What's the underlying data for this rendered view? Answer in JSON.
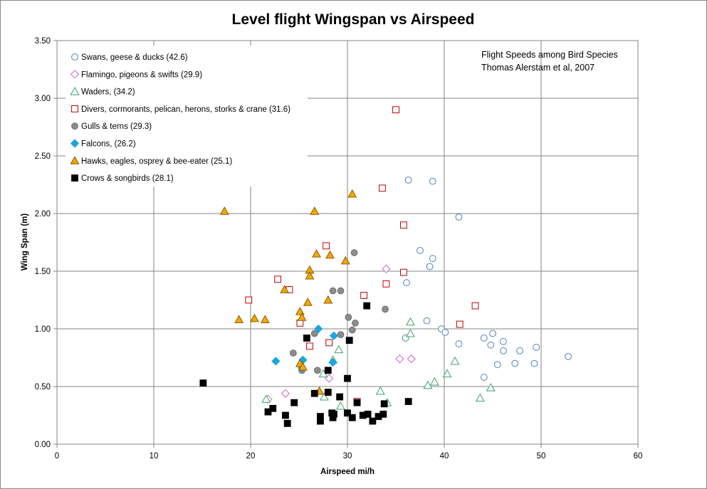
{
  "chart_data": {
    "type": "scatter",
    "title": "Level flight Wingspan vs Airspeed",
    "xlabel": "Airspeed mi/h",
    "ylabel": "Wing Span (m)",
    "xlim": [
      0,
      60
    ],
    "ylim": [
      0,
      3.5
    ],
    "x_ticks": [
      "0",
      "10",
      "20",
      "30",
      "40",
      "50",
      "60"
    ],
    "y_ticks": [
      "0.00",
      "0.50",
      "1.00",
      "1.50",
      "2.00",
      "2.50",
      "3.00",
      "3.50"
    ],
    "grid": true,
    "legend_position": "top-left",
    "annotation": [
      "Flight Speeds among Bird Species",
      "Thomas Alerstam et al, 2007"
    ],
    "series": [
      {
        "name": "Swans, geese & ducks (42.6)",
        "marker": "open-circle",
        "color": "#4f81bd",
        "points": [
          [
            36.3,
            2.29
          ],
          [
            38.8,
            2.28
          ],
          [
            41.5,
            1.97
          ],
          [
            37.5,
            1.68
          ],
          [
            38.8,
            1.61
          ],
          [
            38.5,
            1.54
          ],
          [
            36.1,
            1.4
          ],
          [
            38.2,
            1.07
          ],
          [
            39.7,
            1.0
          ],
          [
            40.1,
            0.97
          ],
          [
            45.0,
            0.96
          ],
          [
            44.1,
            0.92
          ],
          [
            36.0,
            0.92
          ],
          [
            46.1,
            0.89
          ],
          [
            41.5,
            0.87
          ],
          [
            44.8,
            0.86
          ],
          [
            49.5,
            0.84
          ],
          [
            46.1,
            0.81
          ],
          [
            47.8,
            0.81
          ],
          [
            52.8,
            0.76
          ],
          [
            45.5,
            0.69
          ],
          [
            47.3,
            0.7
          ],
          [
            49.3,
            0.7
          ],
          [
            44.1,
            0.58
          ]
        ]
      },
      {
        "name": "Flamingo, pigeons & swifts  (29.9)",
        "marker": "open-diamond",
        "color": "#cc66cc",
        "points": [
          [
            34.0,
            1.52
          ],
          [
            35.4,
            0.74
          ],
          [
            36.6,
            0.74
          ],
          [
            28.1,
            0.57
          ],
          [
            23.6,
            0.44
          ],
          [
            21.8,
            0.39
          ]
        ]
      },
      {
        "name": "Waders, (34.2)",
        "marker": "open-triangle",
        "color": "#3aa56a",
        "points": [
          [
            36.5,
            1.06
          ],
          [
            36.5,
            0.96
          ],
          [
            29.1,
            0.82
          ],
          [
            41.1,
            0.72
          ],
          [
            28.5,
            0.73
          ],
          [
            40.3,
            0.61
          ],
          [
            27.5,
            0.61
          ],
          [
            39.0,
            0.54
          ],
          [
            38.3,
            0.51
          ],
          [
            44.8,
            0.49
          ],
          [
            33.4,
            0.46
          ],
          [
            43.7,
            0.4
          ],
          [
            27.6,
            0.41
          ],
          [
            21.6,
            0.39
          ],
          [
            34.1,
            0.36
          ],
          [
            29.3,
            0.33
          ]
        ]
      },
      {
        "name": "Divers, cormorants, pelican, herons, storks & crane (31.6)",
        "marker": "open-square",
        "color": "#c00000",
        "points": [
          [
            35.0,
            2.9
          ],
          [
            33.6,
            2.22
          ],
          [
            35.8,
            1.9
          ],
          [
            27.8,
            1.72
          ],
          [
            35.8,
            1.49
          ],
          [
            22.8,
            1.43
          ],
          [
            34.0,
            1.39
          ],
          [
            24.0,
            1.34
          ],
          [
            31.7,
            1.29
          ],
          [
            19.8,
            1.25
          ],
          [
            43.2,
            1.2
          ],
          [
            25.1,
            1.05
          ],
          [
            41.6,
            1.04
          ],
          [
            28.1,
            0.88
          ],
          [
            26.1,
            0.85
          ],
          [
            31.0,
            0.37
          ]
        ]
      },
      {
        "name": "Gulls & terns  (29.3)",
        "marker": "filled-circle",
        "color": "#8c8c8c",
        "points": [
          [
            30.7,
            1.66
          ],
          [
            28.5,
            1.33
          ],
          [
            29.3,
            1.33
          ],
          [
            33.9,
            1.17
          ],
          [
            30.1,
            1.1
          ],
          [
            30.8,
            1.05
          ],
          [
            30.5,
            0.99
          ],
          [
            26.6,
            0.96
          ],
          [
            29.3,
            0.95
          ],
          [
            24.4,
            0.79
          ],
          [
            26.9,
            0.64
          ],
          [
            25.3,
            0.64
          ]
        ]
      },
      {
        "name": "Falcons, (26.2)",
        "marker": "filled-diamond",
        "color": "#1ca4e4",
        "points": [
          [
            27.0,
            1.0
          ],
          [
            28.6,
            0.94
          ],
          [
            22.6,
            0.72
          ],
          [
            25.4,
            0.73
          ],
          [
            28.5,
            0.71
          ],
          [
            25.3,
            0.66
          ]
        ]
      },
      {
        "name": "Hawks, eagles, osprey & bee-eater (25.1)",
        "marker": "filled-triangle",
        "color": "#f5a800",
        "points": [
          [
            30.5,
            2.17
          ],
          [
            17.3,
            2.02
          ],
          [
            26.6,
            2.02
          ],
          [
            26.8,
            1.65
          ],
          [
            28.2,
            1.64
          ],
          [
            29.8,
            1.59
          ],
          [
            26.1,
            1.51
          ],
          [
            26.1,
            1.46
          ],
          [
            23.5,
            1.34
          ],
          [
            25.9,
            1.23
          ],
          [
            28.0,
            1.25
          ],
          [
            25.1,
            1.15
          ],
          [
            25.3,
            1.1
          ],
          [
            18.8,
            1.08
          ],
          [
            20.4,
            1.09
          ],
          [
            21.5,
            1.08
          ],
          [
            25.1,
            0.7
          ],
          [
            25.4,
            0.67
          ],
          [
            27.1,
            0.46
          ]
        ]
      },
      {
        "name": "Crows & songbirds (28.1)",
        "marker": "filled-square",
        "color": "#000000",
        "points": [
          [
            15.1,
            0.53
          ],
          [
            21.8,
            0.28
          ],
          [
            22.3,
            0.31
          ],
          [
            23.6,
            0.25
          ],
          [
            23.8,
            0.18
          ],
          [
            24.5,
            0.36
          ],
          [
            25.8,
            0.92
          ],
          [
            28.0,
            0.64
          ],
          [
            26.6,
            0.44
          ],
          [
            27.2,
            0.24
          ],
          [
            27.2,
            0.2
          ],
          [
            28.0,
            0.45
          ],
          [
            28.4,
            0.27
          ],
          [
            28.5,
            0.23
          ],
          [
            28.6,
            0.26
          ],
          [
            29.2,
            0.41
          ],
          [
            30.0,
            0.27
          ],
          [
            30.0,
            0.57
          ],
          [
            30.2,
            0.9
          ],
          [
            30.5,
            0.23
          ],
          [
            31.0,
            0.36
          ],
          [
            31.6,
            0.25
          ],
          [
            32.1,
            0.26
          ],
          [
            32.0,
            1.2
          ],
          [
            32.6,
            0.2
          ],
          [
            33.2,
            0.24
          ],
          [
            33.7,
            0.26
          ],
          [
            33.8,
            0.35
          ],
          [
            36.3,
            0.37
          ]
        ]
      }
    ]
  }
}
